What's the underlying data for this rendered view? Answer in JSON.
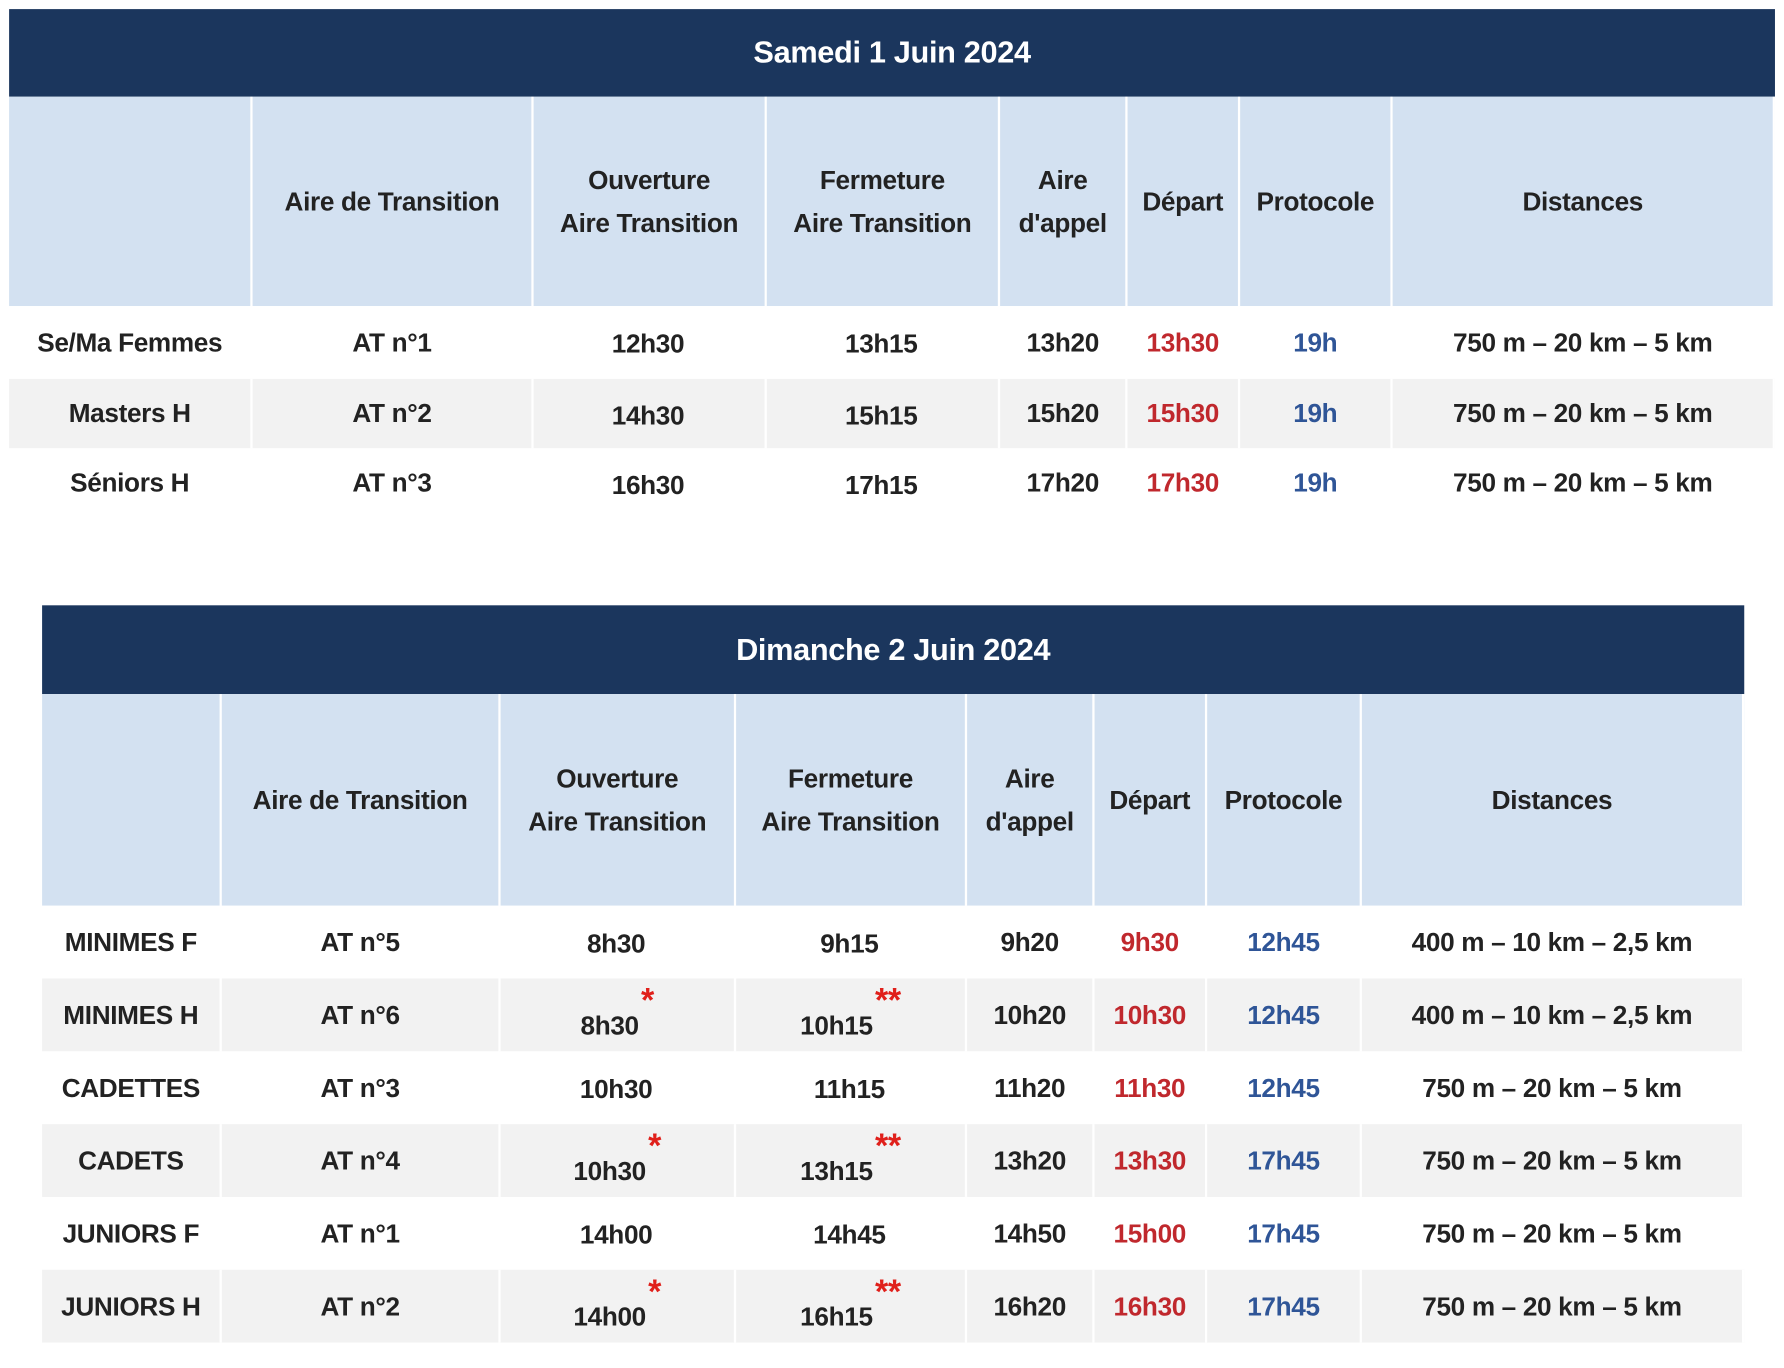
{
  "colors": {
    "band": "#1b365d",
    "header": "#d3e1f1",
    "alt_row": "#f2f2f2",
    "depart": "#c0282d",
    "protocole": "#2f5597",
    "asterisk": "#e0201b"
  },
  "headers": {
    "aire": "Aire de Transition",
    "ouverture_1": "Ouverture",
    "ouverture_2": "Aire Transition",
    "fermeture_1": "Fermeture",
    "fermeture_2": "Aire Transition",
    "appel_1": "Aire",
    "appel_2": "d'appel",
    "depart": "Départ",
    "protocole": "Protocole",
    "distances": "Distances"
  },
  "tables": [
    {
      "title": "Samedi 1 Juin  2024",
      "rows": [
        {
          "category": "Se/Ma Femmes",
          "aire": "AT n°1",
          "ouverture": "12h30",
          "ouverture_mark": "",
          "fermeture": "13h15",
          "fermeture_mark": "",
          "appel": "13h20",
          "depart": "13h30",
          "protocole": "19h",
          "distances": "750 m – 20 km – 5 km"
        },
        {
          "category": "Masters H",
          "aire": "AT n°2",
          "ouverture": "14h30",
          "ouverture_mark": "",
          "fermeture": "15h15",
          "fermeture_mark": "",
          "appel": "15h20",
          "depart": "15h30",
          "protocole": "19h",
          "distances": "750 m – 20 km – 5 km"
        },
        {
          "category": "Séniors H",
          "aire": "AT n°3",
          "ouverture": "16h30",
          "ouverture_mark": "",
          "fermeture": "17h15",
          "fermeture_mark": "",
          "appel": "17h20",
          "depart": "17h30",
          "protocole": "19h",
          "distances": "750 m – 20  km – 5 km"
        }
      ]
    },
    {
      "title": "Dimanche 2 Juin 2024",
      "rows": [
        {
          "category": "MINIMES F",
          "aire": "AT n°5",
          "ouverture": "8h30",
          "ouverture_mark": "",
          "fermeture": "9h15",
          "fermeture_mark": "",
          "appel": "9h20",
          "depart": "9h30",
          "protocole": "12h45",
          "distances": "400 m – 10 km – 2,5 km"
        },
        {
          "category": "MINIMES H",
          "aire": "AT n°6",
          "ouverture": "8h30",
          "ouverture_mark": "*",
          "fermeture": "10h15",
          "fermeture_mark": "**",
          "appel": "10h20",
          "depart": "10h30",
          "protocole": "12h45",
          "distances": "400 m – 10 km – 2,5 km"
        },
        {
          "category": "CADETTES",
          "aire": "AT n°3",
          "ouverture": "10h30",
          "ouverture_mark": "",
          "fermeture": "11h15",
          "fermeture_mark": "",
          "appel": "11h20",
          "depart": "11h30",
          "protocole": "12h45",
          "distances": "750 m – 20  km – 5 km"
        },
        {
          "category": "CADETS",
          "aire": "AT n°4",
          "ouverture": "10h30",
          "ouverture_mark": "*",
          "fermeture": "13h15",
          "fermeture_mark": "**",
          "appel": "13h20",
          "depart": "13h30",
          "protocole": "17h45",
          "distances": "750 m – 20  km – 5  km"
        },
        {
          "category": "JUNIORS F",
          "aire": "AT n°1",
          "ouverture": "14h00",
          "ouverture_mark": "",
          "fermeture": "14h45",
          "fermeture_mark": "",
          "appel": "14h50",
          "depart": "15h00",
          "protocole": "17h45",
          "distances": "750 m – 20  km – 5  km"
        },
        {
          "category": "JUNIORS H",
          "aire": "AT n°2",
          "ouverture": "14h00",
          "ouverture_mark": "*",
          "fermeture": "16h15",
          "fermeture_mark": "**",
          "appel": "16h20",
          "depart": "16h30",
          "protocole": "17h45",
          "distances": "750 m – 20  km – 5  km"
        }
      ]
    }
  ]
}
